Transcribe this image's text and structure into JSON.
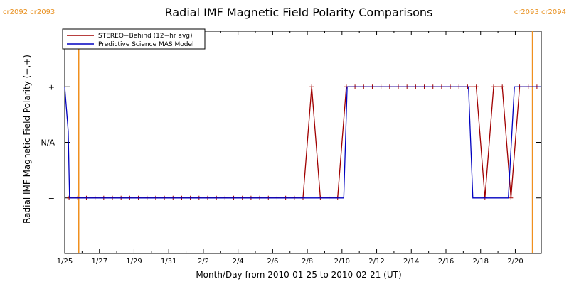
{
  "chart_data": {
    "type": "line",
    "title": "Radial IMF Magnetic Field Polarity Comparisons",
    "xlabel": "Month/Day from 2010-01-25 to 2010-02-21 (UT)",
    "ylabel": "Radial IMF Magnetic Field Polarity (−,+)",
    "x_unit": "days after 2010-01-25 00:00 UT",
    "xlim": [
      0,
      27.5
    ],
    "ylim": [
      -2,
      2
    ],
    "yticks": [
      {
        "value": 1,
        "label": "+"
      },
      {
        "value": 0,
        "label": "N/A"
      },
      {
        "value": -1,
        "label": "−"
      }
    ],
    "xticks": [
      {
        "value": 0,
        "label": "1/25"
      },
      {
        "value": 2,
        "label": "1/27"
      },
      {
        "value": 4,
        "label": "1/29"
      },
      {
        "value": 6,
        "label": "1/31"
      },
      {
        "value": 8,
        "label": "2/2"
      },
      {
        "value": 10,
        "label": "2/4"
      },
      {
        "value": 12,
        "label": "2/6"
      },
      {
        "value": 14,
        "label": "2/8"
      },
      {
        "value": 16,
        "label": "2/10"
      },
      {
        "value": 18,
        "label": "2/12"
      },
      {
        "value": 20,
        "label": "2/14"
      },
      {
        "value": 22,
        "label": "2/16"
      },
      {
        "value": 24,
        "label": "2/18"
      },
      {
        "value": 26,
        "label": "2/20"
      }
    ],
    "carrington_markers": [
      {
        "x": 0.8,
        "label_left": "cr2092",
        "label_right": "cr2093"
      },
      {
        "x": 27.0,
        "label_left": "cr2093",
        "label_right": "cr2094"
      }
    ],
    "legend": {
      "placement": "top-left"
    },
    "colors": {
      "stereo": "#a00000",
      "model": "#0000c0",
      "carrington": "#f0901e"
    },
    "series": [
      {
        "name": "STEREO−Behind (12−hr avg)",
        "color": "#a00000",
        "markers": true,
        "points": [
          [
            0.25,
            -1
          ],
          [
            0.75,
            -1
          ],
          [
            1.25,
            -1
          ],
          [
            1.75,
            -1
          ],
          [
            2.25,
            -1
          ],
          [
            2.75,
            -1
          ],
          [
            3.25,
            -1
          ],
          [
            3.75,
            -1
          ],
          [
            4.25,
            -1
          ],
          [
            4.75,
            -1
          ],
          [
            5.25,
            -1
          ],
          [
            5.75,
            -1
          ],
          [
            6.25,
            -1
          ],
          [
            6.75,
            -1
          ],
          [
            7.25,
            -1
          ],
          [
            7.75,
            -1
          ],
          [
            8.25,
            -1
          ],
          [
            8.75,
            -1
          ],
          [
            9.25,
            -1
          ],
          [
            9.75,
            -1
          ],
          [
            10.25,
            -1
          ],
          [
            10.75,
            -1
          ],
          [
            11.25,
            -1
          ],
          [
            11.75,
            -1
          ],
          [
            12.25,
            -1
          ],
          [
            12.75,
            -1
          ],
          [
            13.25,
            -1
          ],
          [
            13.75,
            -1
          ],
          [
            14.25,
            1
          ],
          [
            14.75,
            -1
          ],
          [
            15.25,
            -1
          ],
          [
            15.75,
            -1
          ],
          [
            16.25,
            1
          ],
          [
            16.75,
            1
          ],
          [
            17.25,
            1
          ],
          [
            17.75,
            1
          ],
          [
            18.25,
            1
          ],
          [
            18.75,
            1
          ],
          [
            19.25,
            1
          ],
          [
            19.75,
            1
          ],
          [
            20.25,
            1
          ],
          [
            20.75,
            1
          ],
          [
            21.25,
            1
          ],
          [
            21.75,
            1
          ],
          [
            22.25,
            1
          ],
          [
            22.75,
            1
          ],
          [
            23.25,
            1
          ],
          [
            23.75,
            1
          ],
          [
            24.25,
            -1
          ],
          [
            24.75,
            1
          ],
          [
            25.25,
            1
          ],
          [
            25.75,
            -1
          ],
          [
            26.25,
            1
          ],
          [
            26.75,
            1
          ],
          [
            27.25,
            1
          ]
        ]
      },
      {
        "name": "Predictive Science MAS Model",
        "color": "#0000c0",
        "markers": false,
        "points": [
          [
            0.0,
            1
          ],
          [
            0.2,
            0.2
          ],
          [
            0.28,
            -1
          ],
          [
            16.1,
            -1
          ],
          [
            16.3,
            1
          ],
          [
            23.3,
            1
          ],
          [
            23.55,
            -1
          ],
          [
            25.6,
            -1
          ],
          [
            25.95,
            1
          ],
          [
            27.5,
            1
          ]
        ]
      }
    ]
  }
}
